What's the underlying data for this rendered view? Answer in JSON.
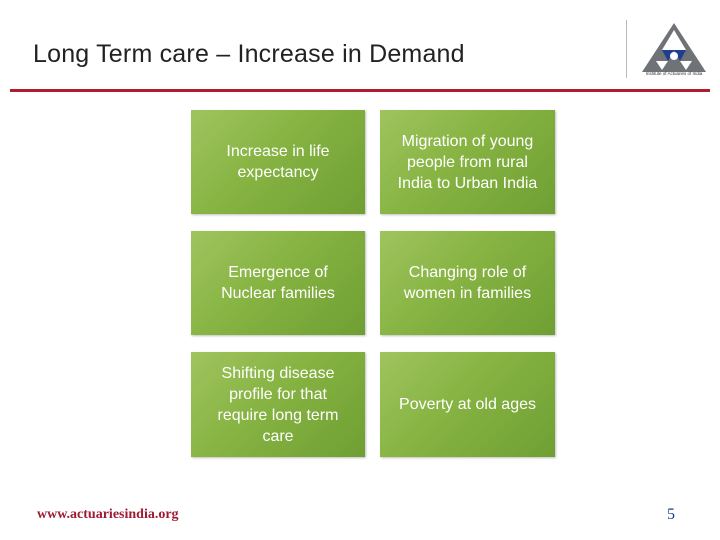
{
  "slide": {
    "title": "Long Term care –  Increase in Demand",
    "accent_color": "#b01c2e",
    "tile_color": "#86b342",
    "tiles": [
      {
        "text": "Increase in life expectancy"
      },
      {
        "text": "Migration of young people from rural India to Urban India"
      },
      {
        "text": "Emergence of Nuclear families"
      },
      {
        "text": "Changing role of women in families"
      },
      {
        "text": "Shifting disease profile for that require long term care"
      },
      {
        "text": "Poverty at old ages"
      }
    ]
  },
  "logo": {
    "icon": "institute-of-actuaries-logo",
    "caption": "Institute of Actuaries of India"
  },
  "footer": {
    "url": "www.actuariesindia.org",
    "page_number": "5"
  }
}
